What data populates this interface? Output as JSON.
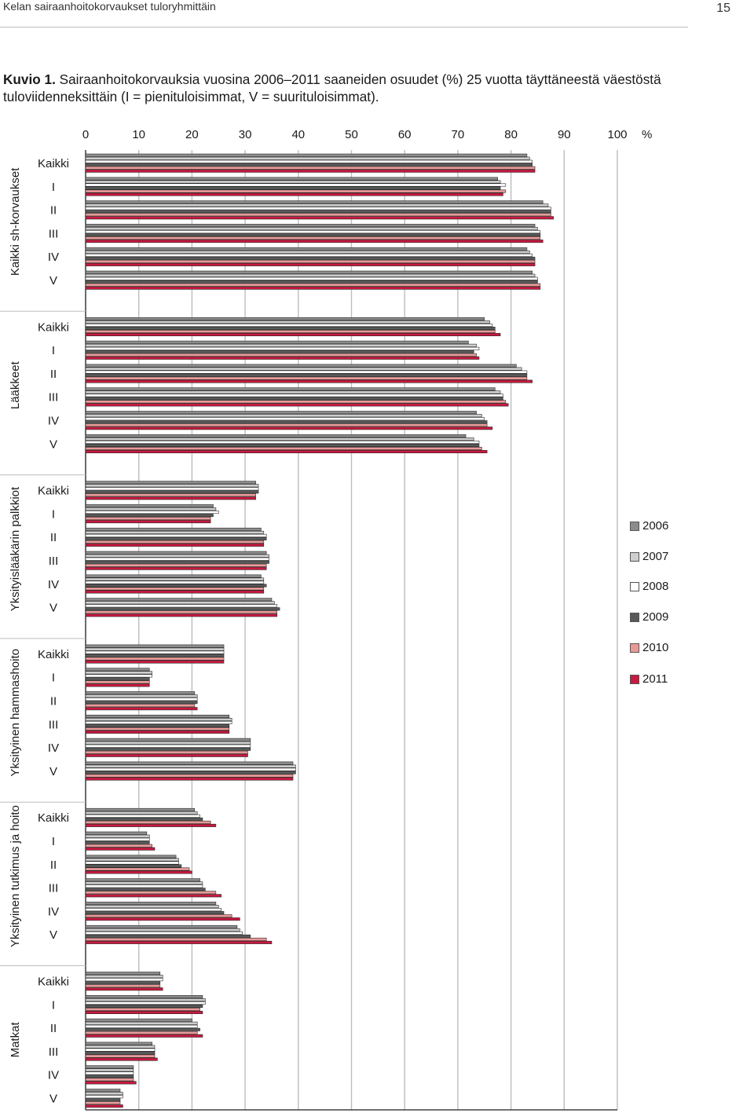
{
  "header": {
    "running_title": "Kelan sairaanhoitokorvaukset tuloryhmittäin",
    "page_number": "15"
  },
  "caption": {
    "lead": "Kuvio 1.",
    "text": " Sairaanhoitokorvauksia vuosina 2006–2011 saaneiden osuudet (%) 25 vuotta täyttäneestä väestöstä tuloviidenneksittäin (I = pienituloisimmat, V = suurituloisimmat)."
  },
  "chart_data": {
    "type": "bar",
    "orientation": "horizontal",
    "x_ticks": [
      "0",
      "10",
      "20",
      "30",
      "40",
      "50",
      "60",
      "70",
      "80",
      "90",
      "100"
    ],
    "x_unit": "%",
    "xlim": [
      0,
      100
    ],
    "grid": "vertical",
    "legend_position": "right",
    "rows": [
      "Kaikki",
      "I",
      "II",
      "III",
      "IV",
      "V"
    ],
    "series": [
      {
        "name": "2006",
        "color": "#8c8c8c"
      },
      {
        "name": "2007",
        "color": "#cdcdcd"
      },
      {
        "name": "2008",
        "color": "#ffffff"
      },
      {
        "name": "2009",
        "color": "#595959"
      },
      {
        "name": "2010",
        "color": "#e89a98"
      },
      {
        "name": "2011",
        "color": "#c8193f"
      }
    ],
    "groups": [
      {
        "name": "Kaikki sh-korvaukset",
        "values": [
          [
            83.0,
            83.5,
            84.0,
            84.0,
            84.5,
            84.5
          ],
          [
            77.5,
            78.0,
            79.0,
            78.0,
            79.0,
            78.5
          ],
          [
            86.0,
            87.0,
            87.5,
            87.5,
            87.5,
            88.0
          ],
          [
            84.5,
            85.0,
            85.5,
            85.5,
            85.5,
            86.0
          ],
          [
            83.0,
            83.5,
            84.0,
            84.5,
            84.5,
            84.5
          ],
          [
            84.0,
            84.5,
            85.0,
            85.0,
            85.5,
            85.5
          ]
        ]
      },
      {
        "name": "Lääkkeet",
        "values": [
          [
            75.0,
            76.0,
            76.5,
            77.0,
            77.0,
            78.0
          ],
          [
            72.0,
            73.5,
            74.0,
            73.0,
            73.5,
            74.0
          ],
          [
            81.0,
            82.0,
            83.0,
            83.0,
            83.0,
            84.0
          ],
          [
            77.0,
            78.0,
            78.5,
            78.5,
            79.0,
            79.5
          ],
          [
            73.5,
            74.5,
            75.0,
            75.5,
            75.5,
            76.5
          ],
          [
            71.5,
            73.0,
            74.0,
            74.0,
            74.5,
            75.5
          ]
        ]
      },
      {
        "name": "Yksityislääkärin palkkiot",
        "values": [
          [
            32.0,
            32.5,
            32.5,
            32.5,
            32.0,
            32.0
          ],
          [
            24.0,
            24.5,
            25.0,
            24.0,
            23.5,
            23.5
          ],
          [
            33.0,
            33.5,
            34.0,
            34.0,
            33.5,
            33.5
          ],
          [
            34.0,
            34.5,
            34.5,
            34.5,
            34.0,
            34.0
          ],
          [
            33.0,
            33.5,
            33.5,
            34.0,
            33.5,
            33.5
          ],
          [
            35.0,
            35.5,
            36.0,
            36.5,
            36.0,
            36.0
          ]
        ]
      },
      {
        "name": "Yksityinen hammashoito",
        "values": [
          [
            26.0,
            26.0,
            26.0,
            26.0,
            26.0,
            26.0
          ],
          [
            12.0,
            12.5,
            12.5,
            12.0,
            12.0,
            12.0
          ],
          [
            20.5,
            21.0,
            21.0,
            21.0,
            20.5,
            21.0
          ],
          [
            27.0,
            27.5,
            27.5,
            27.0,
            27.0,
            27.0
          ],
          [
            31.0,
            31.0,
            31.0,
            31.0,
            30.5,
            30.5
          ],
          [
            39.0,
            39.5,
            39.5,
            39.5,
            39.0,
            39.0
          ]
        ]
      },
      {
        "name": "Yksityinen tutkimus ja hoito",
        "values": [
          [
            20.5,
            21.0,
            21.5,
            22.0,
            23.5,
            24.5
          ],
          [
            11.5,
            12.0,
            12.0,
            12.0,
            12.5,
            13.0
          ],
          [
            17.0,
            17.5,
            17.5,
            18.0,
            19.5,
            20.0
          ],
          [
            21.5,
            22.0,
            22.0,
            22.5,
            24.5,
            25.5
          ],
          [
            24.5,
            25.0,
            25.5,
            26.0,
            27.5,
            29.0
          ],
          [
            28.5,
            29.0,
            29.5,
            31.0,
            34.0,
            35.0
          ]
        ]
      },
      {
        "name": "Matkat",
        "values": [
          [
            14.0,
            14.5,
            14.5,
            14.0,
            14.0,
            14.5
          ],
          [
            22.0,
            22.5,
            22.5,
            22.0,
            21.5,
            22.0
          ],
          [
            20.0,
            21.0,
            21.0,
            21.5,
            21.0,
            22.0
          ],
          [
            12.5,
            13.0,
            13.0,
            13.0,
            13.0,
            13.5
          ],
          [
            9.0,
            9.0,
            9.0,
            9.0,
            9.0,
            9.5
          ],
          [
            6.5,
            7.0,
            7.0,
            6.5,
            6.5,
            7.0
          ]
        ]
      }
    ]
  }
}
